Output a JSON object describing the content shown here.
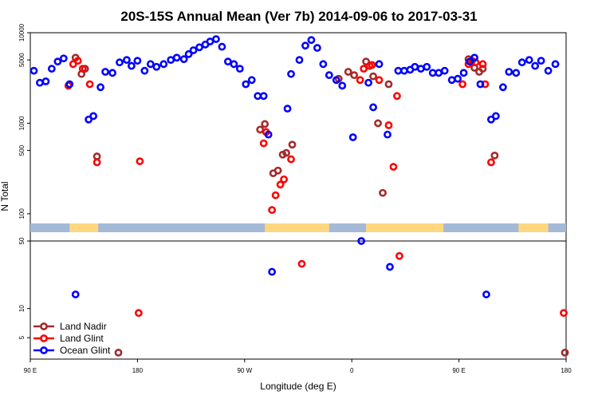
{
  "chart_data": {
    "type": "scatter",
    "title": "20S-15S Annual Mean (Ver 7b)   2014-09-06 to 2017-03-31",
    "xlabel": "Longitude (deg E)",
    "ylabel": "N Total",
    "x_ticks": [
      {
        "value": 90,
        "label": "90 E"
      },
      {
        "value": 180,
        "label": "180"
      },
      {
        "value": 270,
        "label": "90 W"
      },
      {
        "value": 360,
        "label": "0"
      },
      {
        "value": 450,
        "label": "90 E"
      },
      {
        "value": 540,
        "label": "180"
      }
    ],
    "xlim": [
      90,
      540
    ],
    "y_scale": "log",
    "upper_panel": {
      "ylim": [
        50,
        10000
      ],
      "y_ticks": [
        {
          "value": 100,
          "label": "100"
        },
        {
          "value": 500,
          "label": "500"
        },
        {
          "value": 1000,
          "label": "1000"
        },
        {
          "value": 5000,
          "label": "5000"
        },
        {
          "value": 10000,
          "label": "10000"
        }
      ]
    },
    "lower_panel": {
      "ylim": [
        3,
        50
      ],
      "y_ticks": [
        {
          "value": 5,
          "label": "5"
        },
        {
          "value": 10,
          "label": "10"
        },
        {
          "value": 50,
          "label": "50"
        }
      ]
    },
    "land_mask": {
      "ocean_color": "#a3b9d6",
      "land_color": "#ffd77f",
      "land_segments": [
        [
          123,
          147
        ],
        [
          287,
          341
        ],
        [
          372,
          437
        ],
        [
          500,
          525
        ]
      ]
    },
    "series": [
      {
        "name": "Land Nadir",
        "color": "#a52a2a",
        "points": [
          [
            128,
            5300
          ],
          [
            133,
            3500
          ],
          [
            136,
            4000
          ],
          [
            146,
            430
          ],
          [
            164,
            3.5
          ],
          [
            283,
            850
          ],
          [
            287,
            980
          ],
          [
            294,
            280
          ],
          [
            298,
            300
          ],
          [
            302,
            450
          ],
          [
            305,
            470
          ],
          [
            310,
            580
          ],
          [
            349,
            3100
          ],
          [
            357,
            3700
          ],
          [
            362,
            3400
          ],
          [
            372,
            4800
          ],
          [
            378,
            3300
          ],
          [
            382,
            1000
          ],
          [
            386,
            170
          ],
          [
            391,
            2700
          ],
          [
            458,
            5100
          ],
          [
            461,
            4900
          ],
          [
            463,
            4100
          ],
          [
            467,
            3700
          ],
          [
            470,
            4000
          ],
          [
            480,
            440
          ],
          [
            539,
            3.5
          ]
        ]
      },
      {
        "name": "Land Glint",
        "color": "#ff0000",
        "points": [
          [
            122,
            2600
          ],
          [
            126,
            4500
          ],
          [
            130,
            4900
          ],
          [
            134,
            4000
          ],
          [
            140,
            2700
          ],
          [
            146,
            370
          ],
          [
            181,
            9
          ],
          [
            182,
            380
          ],
          [
            286,
            600
          ],
          [
            288,
            800
          ],
          [
            293,
            110
          ],
          [
            296,
            160
          ],
          [
            300,
            210
          ],
          [
            303,
            240
          ],
          [
            309,
            400
          ],
          [
            318,
            29
          ],
          [
            367,
            3000
          ],
          [
            370,
            4000
          ],
          [
            375,
            4300
          ],
          [
            377,
            4400
          ],
          [
            383,
            3000
          ],
          [
            391,
            950
          ],
          [
            395,
            330
          ],
          [
            398,
            2000
          ],
          [
            400,
            35
          ],
          [
            453,
            2700
          ],
          [
            458,
            4500
          ],
          [
            464,
            4700
          ],
          [
            470,
            4500
          ],
          [
            472,
            2700
          ],
          [
            477,
            370
          ],
          [
            538,
            9
          ]
        ]
      },
      {
        "name": "Ocean Glint",
        "color": "#0000ff",
        "points": [
          [
            93,
            3800
          ],
          [
            98,
            2800
          ],
          [
            103,
            2900
          ],
          [
            108,
            4000
          ],
          [
            113,
            4800
          ],
          [
            118,
            5200
          ],
          [
            123,
            2700
          ],
          [
            128,
            14
          ],
          [
            139,
            1100
          ],
          [
            143,
            1200
          ],
          [
            149,
            2500
          ],
          [
            153,
            3700
          ],
          [
            159,
            3600
          ],
          [
            165,
            4700
          ],
          [
            171,
            5000
          ],
          [
            175,
            4300
          ],
          [
            180,
            4900
          ],
          [
            186,
            3800
          ],
          [
            191,
            4500
          ],
          [
            196,
            4200
          ],
          [
            202,
            4500
          ],
          [
            208,
            5000
          ],
          [
            213,
            5300
          ],
          [
            219,
            5100
          ],
          [
            223,
            5800
          ],
          [
            227,
            6400
          ],
          [
            232,
            6900
          ],
          [
            237,
            7400
          ],
          [
            241,
            8000
          ],
          [
            246,
            8500
          ],
          [
            251,
            7000
          ],
          [
            256,
            4800
          ],
          [
            261,
            4500
          ],
          [
            266,
            4000
          ],
          [
            271,
            2700
          ],
          [
            276,
            3000
          ],
          [
            281,
            2000
          ],
          [
            286,
            2000
          ],
          [
            290,
            750
          ],
          [
            293,
            24
          ],
          [
            306,
            1450
          ],
          [
            309,
            3500
          ],
          [
            316,
            5000
          ],
          [
            321,
            7200
          ],
          [
            326,
            8300
          ],
          [
            331,
            6800
          ],
          [
            336,
            4500
          ],
          [
            341,
            3400
          ],
          [
            347,
            3000
          ],
          [
            352,
            2600
          ],
          [
            361,
            700
          ],
          [
            368,
            50
          ],
          [
            374,
            2800
          ],
          [
            378,
            1500
          ],
          [
            383,
            4500
          ],
          [
            390,
            750
          ],
          [
            392,
            27
          ],
          [
            399,
            3800
          ],
          [
            404,
            3800
          ],
          [
            409,
            3900
          ],
          [
            413,
            4200
          ],
          [
            418,
            4000
          ],
          [
            423,
            4200
          ],
          [
            428,
            3600
          ],
          [
            433,
            3600
          ],
          [
            438,
            3800
          ],
          [
            444,
            3000
          ],
          [
            449,
            3100
          ],
          [
            454,
            3600
          ],
          [
            459,
            4800
          ],
          [
            463,
            5300
          ],
          [
            468,
            2700
          ],
          [
            473,
            14
          ],
          [
            477,
            1100
          ],
          [
            481,
            1200
          ],
          [
            487,
            2500
          ],
          [
            492,
            3700
          ],
          [
            498,
            3600
          ],
          [
            503,
            4700
          ],
          [
            509,
            5000
          ],
          [
            514,
            4300
          ],
          [
            519,
            4900
          ],
          [
            525,
            3800
          ],
          [
            531,
            4500
          ]
        ]
      }
    ],
    "legend": {
      "position": "bottom-left",
      "entries": [
        "Land Nadir",
        "Land Glint",
        "Ocean Glint"
      ]
    }
  }
}
